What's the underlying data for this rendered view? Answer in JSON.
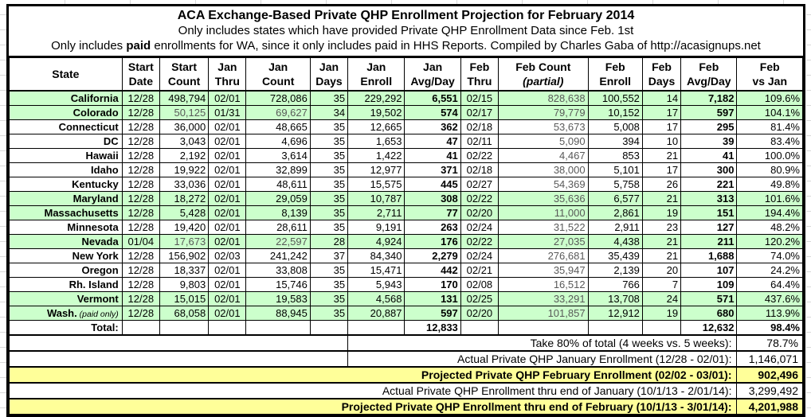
{
  "colors": {
    "row_highlight_green": "#ccffcc",
    "summary_highlight_yellow": "#ffff99",
    "muted_value_gray": "#595959"
  },
  "chart_data": {
    "type": "table",
    "title": "ACA Exchange-Based Private QHP Enrollment Projection for February 2014",
    "subtitle1": "Only includes states which have provided Private QHP Enrollment Data since Feb. 1st",
    "subtitle2_pre": "Only includes ",
    "subtitle2_bold": "paid",
    "subtitle2_post": " enrollments for WA, since it only includes paid in HHS Reports. Compiled by Charles Gaba of http://acasignups.net",
    "columns": [
      {
        "l1": "State",
        "l2": ""
      },
      {
        "l1": "Start",
        "l2": "Date"
      },
      {
        "l1": "Start",
        "l2": "Count"
      },
      {
        "l1": "Jan",
        "l2": "Thru"
      },
      {
        "l1": "Jan",
        "l2": "Count"
      },
      {
        "l1": "Jan",
        "l2": "Days"
      },
      {
        "l1": "Jan",
        "l2": "Enroll"
      },
      {
        "l1": "Jan",
        "l2": "Avg/Day"
      },
      {
        "l1": "Feb",
        "l2": "Thru"
      },
      {
        "l1": "Feb Count",
        "l2": "(partial)",
        "italic2": true
      },
      {
        "l1": "Feb",
        "l2": "Enroll"
      },
      {
        "l1": "Feb",
        "l2": "Days"
      },
      {
        "l1": "Feb",
        "l2": "Avg/Day"
      },
      {
        "l1": "Feb",
        "l2": "vs Jan"
      }
    ],
    "rows": [
      {
        "state": "California",
        "note": "",
        "green": true,
        "muted": false,
        "cells": [
          "12/28",
          "498,794",
          "02/01",
          "728,086",
          "35",
          "229,292",
          "6,551",
          "02/15",
          "828,638",
          "100,552",
          "14",
          "7,182",
          "109.6%"
        ]
      },
      {
        "state": "Colorado",
        "note": "",
        "green": true,
        "muted": true,
        "cells": [
          "12/28",
          "50,125",
          "01/31",
          "69,627",
          "34",
          "19,502",
          "574",
          "02/17",
          "79,779",
          "10,152",
          "17",
          "597",
          "104.1%"
        ]
      },
      {
        "state": "Connecticut",
        "note": "",
        "green": false,
        "muted": false,
        "cells": [
          "12/28",
          "36,000",
          "02/01",
          "48,665",
          "35",
          "12,665",
          "362",
          "02/18",
          "53,673",
          "5,008",
          "17",
          "295",
          "81.4%"
        ]
      },
      {
        "state": "DC",
        "note": "",
        "green": false,
        "muted": false,
        "cells": [
          "12/28",
          "3,043",
          "02/01",
          "4,696",
          "35",
          "1,653",
          "47",
          "02/11",
          "5,090",
          "394",
          "10",
          "39",
          "83.4%"
        ]
      },
      {
        "state": "Hawaii",
        "note": "",
        "green": false,
        "muted": false,
        "cells": [
          "12/28",
          "2,192",
          "02/01",
          "3,614",
          "35",
          "1,422",
          "41",
          "02/22",
          "4,467",
          "853",
          "21",
          "41",
          "100.0%"
        ]
      },
      {
        "state": "Idaho",
        "note": "",
        "green": false,
        "muted": false,
        "cells": [
          "12/28",
          "19,922",
          "02/01",
          "32,899",
          "35",
          "12,977",
          "371",
          "02/18",
          "38,000",
          "5,101",
          "17",
          "300",
          "80.9%"
        ]
      },
      {
        "state": "Kentucky",
        "note": "",
        "green": false,
        "muted": false,
        "cells": [
          "12/28",
          "33,036",
          "02/01",
          "48,611",
          "35",
          "15,575",
          "445",
          "02/27",
          "54,369",
          "5,758",
          "26",
          "221",
          "49.8%"
        ]
      },
      {
        "state": "Maryland",
        "note": "",
        "green": true,
        "muted": false,
        "cells": [
          "12/28",
          "18,272",
          "02/01",
          "29,059",
          "35",
          "10,787",
          "308",
          "02/22",
          "35,636",
          "6,577",
          "21",
          "313",
          "101.6%"
        ]
      },
      {
        "state": "Massachusetts",
        "note": "",
        "green": true,
        "muted": false,
        "cells": [
          "12/28",
          "5,428",
          "02/01",
          "8,139",
          "35",
          "2,711",
          "77",
          "02/20",
          "11,000",
          "2,861",
          "19",
          "151",
          "194.4%"
        ]
      },
      {
        "state": "Minnesota",
        "note": "",
        "green": false,
        "muted": false,
        "cells": [
          "12/28",
          "19,420",
          "02/01",
          "28,611",
          "35",
          "9,191",
          "263",
          "02/24",
          "31,522",
          "2,911",
          "23",
          "127",
          "48.2%"
        ]
      },
      {
        "state": "Nevada",
        "note": "",
        "green": true,
        "muted": true,
        "cells": [
          "01/04",
          "17,673",
          "02/01",
          "22,597",
          "28",
          "4,924",
          "176",
          "02/22",
          "27,035",
          "4,438",
          "21",
          "211",
          "120.2%"
        ]
      },
      {
        "state": "New York",
        "note": "",
        "green": false,
        "muted": false,
        "cells": [
          "12/28",
          "156,902",
          "02/03",
          "241,242",
          "37",
          "84,340",
          "2,279",
          "02/24",
          "276,681",
          "35,439",
          "21",
          "1,688",
          "74.0%"
        ]
      },
      {
        "state": "Oregon",
        "note": "",
        "green": false,
        "muted": false,
        "cells": [
          "12/28",
          "18,337",
          "02/01",
          "33,808",
          "35",
          "15,471",
          "442",
          "02/21",
          "35,947",
          "2,139",
          "20",
          "107",
          "24.2%"
        ]
      },
      {
        "state": "Rh. Island",
        "note": "",
        "green": false,
        "muted": false,
        "cells": [
          "12/28",
          "9,803",
          "02/01",
          "15,746",
          "35",
          "5,943",
          "170",
          "02/08",
          "16,512",
          "766",
          "7",
          "109",
          "64.4%"
        ]
      },
      {
        "state": "Vermont",
        "note": "",
        "green": true,
        "muted": false,
        "cells": [
          "12/28",
          "15,015",
          "02/01",
          "19,583",
          "35",
          "4,568",
          "131",
          "02/25",
          "33,291",
          "13,708",
          "24",
          "571",
          "437.6%"
        ]
      },
      {
        "state": "Wash.",
        "note": "(paid only)",
        "green": true,
        "muted": false,
        "cells": [
          "12/28",
          "68,058",
          "02/01",
          "88,945",
          "35",
          "20,887",
          "597",
          "02/20",
          "101,857",
          "12,912",
          "19",
          "680",
          "113.9%"
        ]
      }
    ],
    "total_row": {
      "label": "Total:",
      "jan_avg_day": "12,833",
      "feb_avg_day": "12,632",
      "feb_vs_jan": "98.4%"
    },
    "summary_rows": [
      {
        "label": "Take 80% of total (4 weeks vs. 5 weeks):",
        "value": "78.7%",
        "style": "split"
      },
      {
        "label": "Actual Private QHP January Enrollment (12/28 - 02/01):",
        "value": "1,146,071",
        "style": "split"
      },
      {
        "label": "Projected Private QHP February Enrollment (02/02 - 03/01):",
        "value": "902,496",
        "style": "full-yellow"
      },
      {
        "label": "Actual Private QHP Enrollment thru end of January (10/1/13 - 2/01/14):",
        "value": "3,299,492",
        "style": "full"
      },
      {
        "label": "Projected Private QHP Enrollment thru end of February (10/1/13 - 3/01/14):",
        "value": "4,201,988",
        "style": "full-yellow"
      }
    ]
  }
}
